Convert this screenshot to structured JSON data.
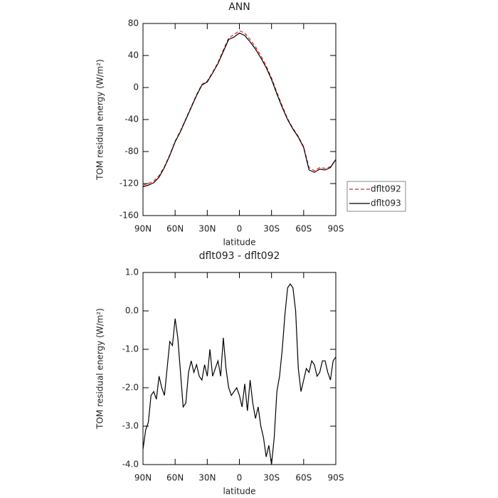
{
  "chart_data": [
    {
      "type": "line",
      "title": "ANN",
      "xlabel": "latitude",
      "ylabel": "TOM residual energy (W/m²)",
      "x": [
        90,
        85,
        80,
        75,
        70,
        65,
        60,
        55,
        50,
        45,
        40,
        35,
        30,
        25,
        20,
        15,
        10,
        5,
        0,
        -5,
        -10,
        -15,
        -20,
        -25,
        -30,
        -35,
        -40,
        -45,
        -50,
        -55,
        -60,
        -65,
        -70,
        -75,
        -80,
        -85,
        -90
      ],
      "series": [
        {
          "name": "dflt092",
          "color": "#e0201c",
          "dash": true,
          "values": [
            -122,
            -120,
            -117,
            -110,
            -99,
            -84,
            -67,
            -54,
            -39,
            -24,
            -9,
            4,
            8,
            19,
            31,
            47,
            62,
            66,
            71,
            68,
            60,
            51,
            40,
            27,
            12,
            -6,
            -23,
            -39,
            -51,
            -61,
            -74,
            -100,
            -104,
            -100,
            -101,
            -99,
            -90
          ]
        },
        {
          "name": "dflt093",
          "color": "#000000",
          "dash": false,
          "values": [
            -124,
            -122,
            -119,
            -112,
            -100,
            -85,
            -68,
            -55,
            -40,
            -25,
            -10,
            3,
            7,
            18,
            30,
            45,
            60,
            63,
            68,
            65,
            57,
            48,
            37,
            25,
            10,
            -8,
            -25,
            -40,
            -52,
            -62,
            -75,
            -103,
            -106,
            -102,
            -103,
            -100,
            -90
          ]
        }
      ],
      "xlim": [
        90,
        -90
      ],
      "xticks": [
        {
          "value": 90,
          "label": "90N"
        },
        {
          "value": 60,
          "label": "60N"
        },
        {
          "value": 30,
          "label": "30N"
        },
        0,
        {
          "value": -30,
          "label": "30S"
        },
        {
          "value": -60,
          "label": "60S"
        },
        {
          "value": -90,
          "label": "90S"
        }
      ],
      "ylim": [
        -160,
        80
      ],
      "yticks": [
        80,
        40,
        0,
        -40,
        -80,
        -120,
        -160
      ],
      "legend": "right"
    },
    {
      "type": "line",
      "title": "dflt093 - dflt092",
      "xlabel": "latitude",
      "ylabel": "TOM residual energy (W/m²)",
      "x": [
        90,
        87.5,
        85,
        82.5,
        80,
        77.5,
        75,
        72.5,
        70,
        67.5,
        65,
        62.5,
        60,
        57.5,
        55,
        52.5,
        50,
        47.5,
        45,
        42.5,
        40,
        37.5,
        35,
        32.5,
        30,
        27.5,
        25,
        22.5,
        20,
        17.5,
        15,
        12.5,
        10,
        7.5,
        5,
        2.5,
        0,
        -2.5,
        -5,
        -7.5,
        -10,
        -12.5,
        -15,
        -17.5,
        -20,
        -22.5,
        -25,
        -27.5,
        -30,
        -32.5,
        -35,
        -37.5,
        -40,
        -42.5,
        -45,
        -47.5,
        -50,
        -52.5,
        -55,
        -57.5,
        -60,
        -62.5,
        -65,
        -67.5,
        -70,
        -72.5,
        -75,
        -77.5,
        -80,
        -82.5,
        -85,
        -87.5,
        -90
      ],
      "series": [
        {
          "color": "#000000",
          "values": [
            -3.6,
            -3.1,
            -2.9,
            -2.2,
            -2.1,
            -2.3,
            -1.7,
            -2.0,
            -2.2,
            -1.5,
            -0.8,
            -0.9,
            -0.2,
            -0.7,
            -1.6,
            -2.5,
            -2.4,
            -1.6,
            -1.3,
            -1.6,
            -1.4,
            -1.7,
            -1.8,
            -1.4,
            -1.7,
            -1.0,
            -1.7,
            -1.5,
            -1.3,
            -1.7,
            -0.7,
            -1.5,
            -2.0,
            -2.2,
            -2.1,
            -2.0,
            -2.2,
            -2.5,
            -1.9,
            -2.6,
            -1.8,
            -2.4,
            -2.8,
            -2.5,
            -3.0,
            -3.3,
            -3.8,
            -3.5,
            -4.0,
            -3.3,
            -2.1,
            -1.7,
            -1.0,
            -0.1,
            0.6,
            0.7,
            0.6,
            0.0,
            -1.5,
            -2.1,
            -1.8,
            -1.5,
            -1.6,
            -1.3,
            -1.4,
            -1.7,
            -1.6,
            -1.3,
            -1.3,
            -1.6,
            -1.8,
            -1.3,
            -1.2
          ]
        }
      ],
      "xlim": [
        90,
        -90
      ],
      "xticks": [
        {
          "value": 90,
          "label": "90N"
        },
        {
          "value": 60,
          "label": "60N"
        },
        {
          "value": 30,
          "label": "30N"
        },
        0,
        {
          "value": -30,
          "label": "30S"
        },
        {
          "value": -60,
          "label": "60S"
        },
        {
          "value": -90,
          "label": "90S"
        }
      ],
      "ylim": [
        -4,
        1
      ],
      "yticks": [
        {
          "value": 1,
          "label": "1.0"
        },
        {
          "value": 0,
          "label": "0.0"
        },
        {
          "value": -1,
          "label": "-1.0"
        },
        {
          "value": -2,
          "label": "-2.0"
        },
        {
          "value": -3,
          "label": "-3.0"
        },
        {
          "value": -4,
          "label": "-4.0"
        }
      ]
    }
  ]
}
